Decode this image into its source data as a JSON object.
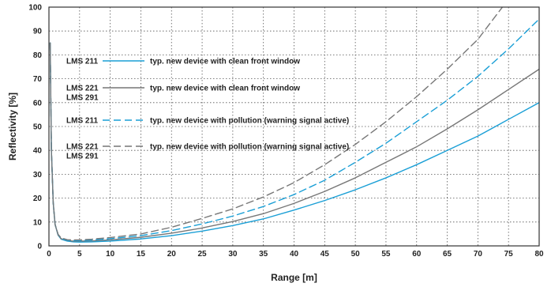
{
  "chart_data": {
    "type": "line",
    "title": "",
    "xlabel": "Range [m]",
    "ylabel": "Reflectivity [%]",
    "xlim": [
      0,
      80
    ],
    "ylim": [
      0,
      100
    ],
    "x_ticks": [
      0,
      5,
      10,
      15,
      20,
      25,
      30,
      35,
      40,
      45,
      50,
      55,
      60,
      65,
      70,
      75,
      80
    ],
    "y_ticks": [
      0,
      10,
      20,
      30,
      40,
      50,
      60,
      70,
      80,
      90,
      100
    ],
    "grid": true,
    "legend_position": "top-left",
    "series": [
      {
        "id": "s1",
        "devices": [
          "LMS 211"
        ],
        "name": "typ. new device with clean front window",
        "color": "#1a9fd6",
        "dash": "solid",
        "x": [
          0.2,
          0.4,
          0.7,
          1,
          1.5,
          2,
          3,
          4,
          5,
          7,
          10,
          15,
          20,
          25,
          30,
          35,
          40,
          45,
          50,
          55,
          60,
          65,
          70,
          75,
          80
        ],
        "y": [
          85,
          40,
          18,
          9,
          4.5,
          2.8,
          2,
          1.7,
          1.6,
          1.7,
          2,
          2.9,
          4.3,
          6.2,
          8.5,
          11.3,
          15,
          19,
          23.5,
          28.5,
          34,
          40,
          46,
          53,
          60
        ]
      },
      {
        "id": "s2",
        "devices": [
          "LMS 221",
          "LMS 291"
        ],
        "name": "typ. new device with clean front window",
        "color": "#777777",
        "dash": "solid",
        "x": [
          0.2,
          0.4,
          0.7,
          1,
          1.5,
          2,
          3,
          4,
          5,
          7,
          10,
          15,
          20,
          25,
          30,
          35,
          40,
          45,
          50,
          55,
          60,
          65,
          70,
          75,
          80
        ],
        "y": [
          85,
          40,
          18,
          9,
          4.5,
          3,
          2.2,
          2,
          2,
          2.1,
          2.5,
          3.6,
          5.3,
          7.5,
          10.2,
          13.5,
          17.8,
          22.8,
          28.5,
          35,
          41.5,
          49,
          57,
          65.5,
          74
        ]
      },
      {
        "id": "s3",
        "devices": [
          "LMS 211"
        ],
        "name": "typ. new device with pollution (warning signal active)",
        "color": "#1a9fd6",
        "dash": "dashed",
        "x": [
          0.2,
          0.4,
          0.7,
          1,
          1.5,
          2,
          3,
          4,
          5,
          7,
          10,
          15,
          20,
          25,
          30,
          35,
          40,
          45,
          50,
          55,
          60,
          65,
          70,
          75,
          80
        ],
        "y": [
          85,
          40,
          18,
          9,
          4.7,
          3.1,
          2.3,
          2.2,
          2.2,
          2.4,
          3,
          4.3,
          6.4,
          9.2,
          12.5,
          16.5,
          21.5,
          27.5,
          35,
          43,
          52,
          61,
          71,
          82.5,
          95
        ]
      },
      {
        "id": "s4",
        "devices": [
          "LMS 221",
          "LMS 291"
        ],
        "name": "typ. new device with pollution (warning signal active)",
        "color": "#777777",
        "dash": "dashed",
        "x": [
          0.2,
          0.4,
          0.7,
          1,
          1.5,
          2,
          3,
          4,
          5,
          7,
          10,
          15,
          20,
          25,
          30,
          35,
          40,
          45,
          50,
          55,
          60,
          65,
          70,
          74
        ],
        "y": [
          85,
          40,
          18,
          9,
          4.8,
          3.3,
          2.6,
          2.5,
          2.5,
          2.8,
          3.5,
          5,
          7.8,
          11.5,
          15.5,
          20.5,
          26.5,
          34,
          42.5,
          52,
          62.5,
          74,
          86.5,
          100
        ]
      }
    ]
  }
}
